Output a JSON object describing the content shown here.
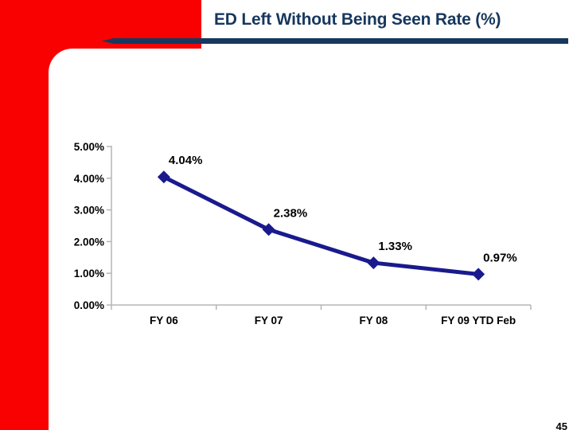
{
  "slide": {
    "title": "ED Left Without Being Seen Rate (%)",
    "page_number": "45"
  },
  "colors": {
    "accent_red": "#F90100",
    "title_navy": "#17375D",
    "rule_navy": "#17375E",
    "series_navy": "#1A1A8E",
    "axis_gray": "#B5B5B5",
    "label_black": "#000000"
  },
  "chart_data": {
    "type": "line",
    "categories": [
      "FY 06",
      "FY 07",
      "FY 08",
      "FY 09 YTD Feb"
    ],
    "values": [
      4.04,
      2.38,
      1.33,
      0.97
    ],
    "data_labels": [
      "4.04%",
      "2.38%",
      "1.33%",
      "0.97%"
    ],
    "y_ticks": [
      "0.00%",
      "1.00%",
      "2.00%",
      "3.00%",
      "4.00%",
      "5.00%"
    ],
    "ylim": [
      0,
      5
    ],
    "title": "",
    "xlabel": "",
    "ylabel": "",
    "grid": false,
    "legend": "none",
    "marker": "diamond"
  }
}
